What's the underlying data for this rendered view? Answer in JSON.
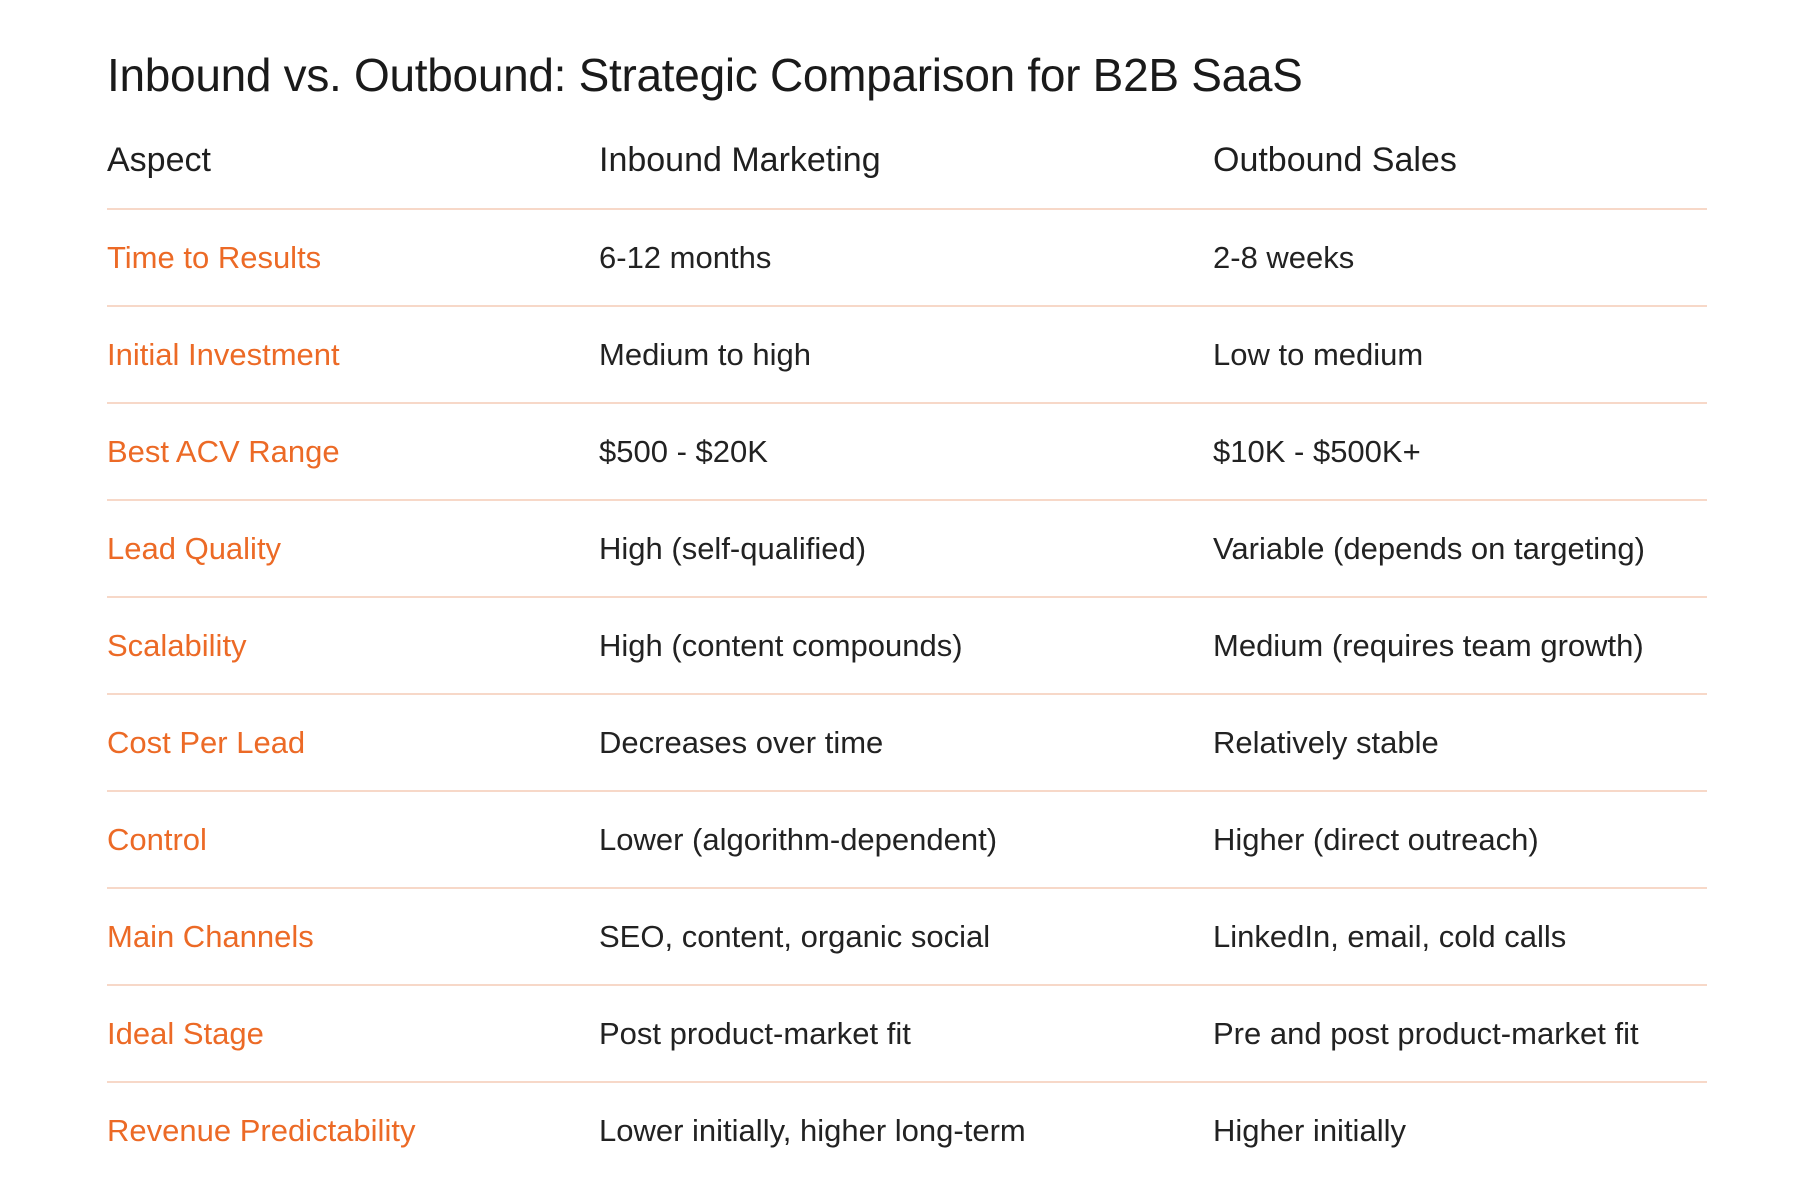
{
  "title": "Inbound vs. Outbound: Strategic Comparison for B2B SaaS",
  "columns": [
    "Aspect",
    "Inbound Marketing",
    "Outbound Sales"
  ],
  "rows": [
    {
      "aspect": "Time to Results",
      "inbound": "6-12 months",
      "outbound": "2-8 weeks"
    },
    {
      "aspect": "Initial Investment",
      "inbound": "Medium to high",
      "outbound": "Low to medium"
    },
    {
      "aspect": "Best ACV Range",
      "inbound": "$500 - $20K",
      "outbound": "$10K - $500K+"
    },
    {
      "aspect": "Lead Quality",
      "inbound": "High (self-qualified)",
      "outbound": "Variable (depends on targeting)"
    },
    {
      "aspect": "Scalability",
      "inbound": "High (content compounds)",
      "outbound": "Medium (requires team growth)"
    },
    {
      "aspect": "Cost Per Lead",
      "inbound": "Decreases over time",
      "outbound": "Relatively stable"
    },
    {
      "aspect": "Control",
      "inbound": "Lower (algorithm-dependent)",
      "outbound": "Higher (direct outreach)"
    },
    {
      "aspect": "Main Channels",
      "inbound": "SEO, content, organic social",
      "outbound": "LinkedIn, email, cold calls"
    },
    {
      "aspect": "Ideal Stage",
      "inbound": "Post product-market fit",
      "outbound": "Pre and post product-market fit"
    },
    {
      "aspect": "Revenue Predictability",
      "inbound": "Lower initially, higher long-term",
      "outbound": "Higher initially"
    }
  ],
  "colors": {
    "aspect_text": "#ec6a26",
    "divider": "#f7d8c8",
    "body_text": "#222222",
    "heading_text": "#1a1a1a"
  }
}
